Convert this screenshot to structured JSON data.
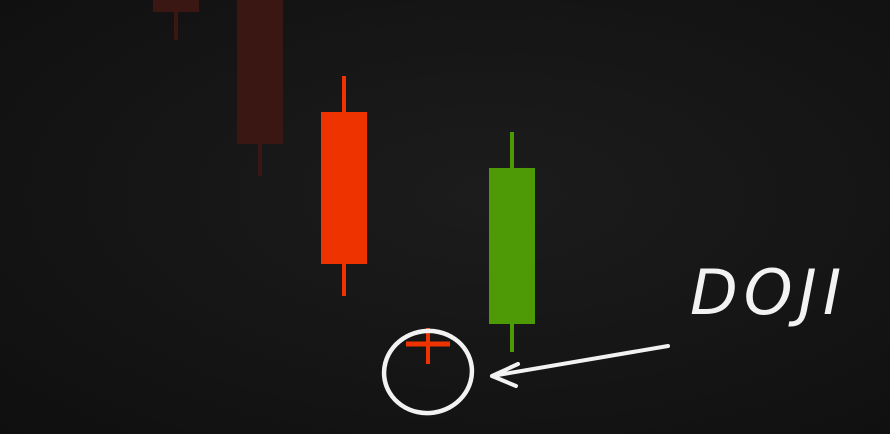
{
  "chart_data": {
    "type": "candlestick",
    "title": "",
    "xlabel": "",
    "ylabel": "",
    "grid": false,
    "ylim": [
      0,
      100
    ],
    "candles": [
      {
        "index": 0,
        "open": 100,
        "close": 97,
        "high": 100,
        "low": 90,
        "direction": "down",
        "faded": true
      },
      {
        "index": 1,
        "open": 100,
        "close": 64,
        "high": 100,
        "low": 56,
        "direction": "down",
        "faded": true
      },
      {
        "index": 2,
        "open": 72,
        "close": 34,
        "high": 81,
        "low": 26,
        "direction": "down",
        "faded": false
      },
      {
        "index": 3,
        "open": 19,
        "close": 58,
        "high": 67,
        "low": 12,
        "direction": "up",
        "faded": false
      },
      {
        "index": 4,
        "open": 14,
        "close": 14,
        "high": 18,
        "low": 9,
        "direction": "doji",
        "faded": false
      }
    ],
    "annotations": [
      {
        "text": "DOJI",
        "target_index": 4
      }
    ],
    "colors": {
      "bearish": "#ee3300",
      "bearish_faded": "#3a1712",
      "bullish": "#4e9a06",
      "doji": "#ee3300",
      "annotation": "#f2f2f2",
      "background": "#141414"
    }
  }
}
